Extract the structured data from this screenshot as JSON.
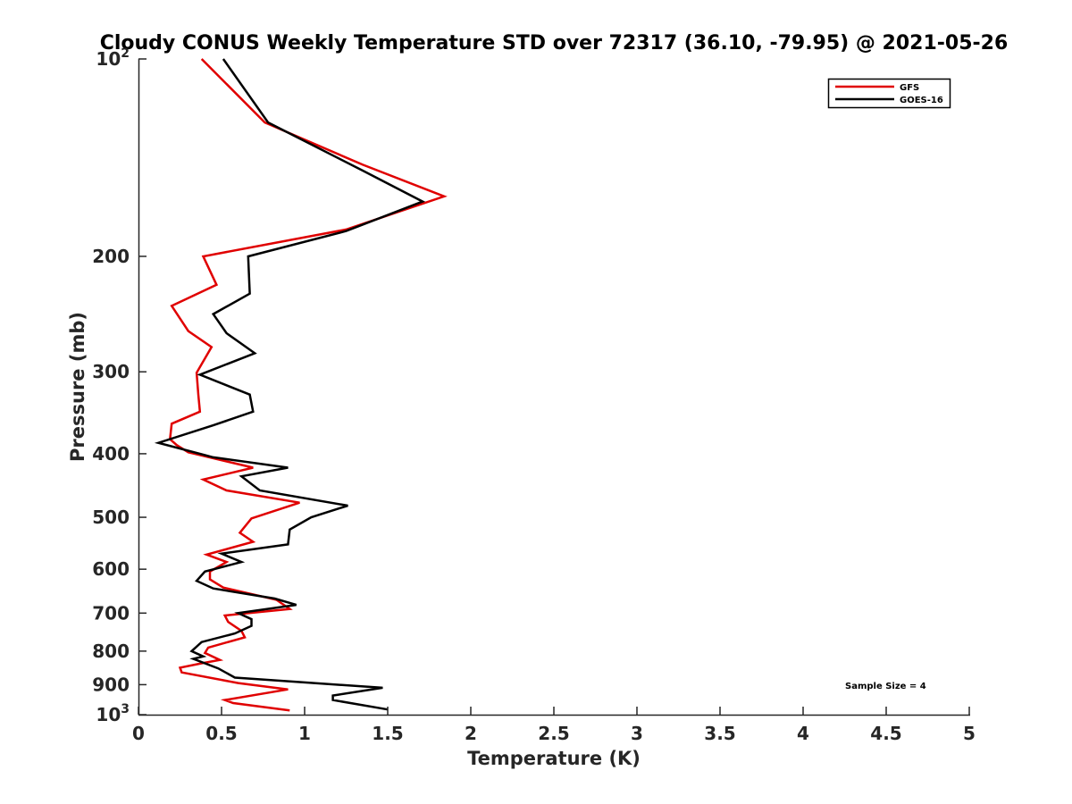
{
  "chart_data": {
    "type": "line",
    "title": "Cloudy CONUS Weekly Temperature STD over 72317 (36.10, -79.95) @ 2021-05-26",
    "xlabel": "Temperature (K)",
    "ylabel": "Pressure (mb)",
    "xlim": [
      0,
      5
    ],
    "ylim": [
      100,
      1000
    ],
    "y_scale": "log",
    "y_direction": "reverse",
    "x_ticks": [
      "0",
      "0.5",
      "1",
      "1.5",
      "2",
      "2.5",
      "3",
      "3.5",
      "4",
      "4.5",
      "5"
    ],
    "y_ticks": [
      {
        "value": 100,
        "base": "10",
        "exp": "2"
      },
      {
        "value": 200,
        "label": "200"
      },
      {
        "value": 300,
        "label": "300"
      },
      {
        "value": 400,
        "label": "400"
      },
      {
        "value": 500,
        "label": "500"
      },
      {
        "value": 600,
        "label": "600"
      },
      {
        "value": 700,
        "label": "700"
      },
      {
        "value": 800,
        "label": "800"
      },
      {
        "value": 900,
        "label": "900"
      },
      {
        "value": 1000,
        "base": "10",
        "exp": "3"
      }
    ],
    "legend": {
      "position": "top-right"
    },
    "annotation": "Sample Size = 4",
    "series": [
      {
        "name": "GFS",
        "color": "#e00000",
        "points": [
          [
            0.38,
            100
          ],
          [
            0.76,
            125
          ],
          [
            1.35,
            145
          ],
          [
            1.84,
            162
          ],
          [
            1.25,
            182
          ],
          [
            0.39,
            200
          ],
          [
            0.47,
            221
          ],
          [
            0.2,
            238
          ],
          [
            0.3,
            260
          ],
          [
            0.44,
            275
          ],
          [
            0.35,
            301
          ],
          [
            0.36,
            325
          ],
          [
            0.37,
            345
          ],
          [
            0.2,
            360
          ],
          [
            0.19,
            380
          ],
          [
            0.23,
            388
          ],
          [
            0.3,
            398
          ],
          [
            0.69,
            420
          ],
          [
            0.39,
            438
          ],
          [
            0.53,
            455
          ],
          [
            0.97,
            475
          ],
          [
            0.68,
            502
          ],
          [
            0.61,
            528
          ],
          [
            0.69,
            545
          ],
          [
            0.41,
            570
          ],
          [
            0.53,
            585
          ],
          [
            0.43,
            605
          ],
          [
            0.43,
            622
          ],
          [
            0.51,
            640
          ],
          [
            0.83,
            668
          ],
          [
            0.91,
            690
          ],
          [
            0.52,
            706
          ],
          [
            0.54,
            722
          ],
          [
            0.62,
            745
          ],
          [
            0.64,
            762
          ],
          [
            0.42,
            790
          ],
          [
            0.4,
            805
          ],
          [
            0.49,
            825
          ],
          [
            0.38,
            835
          ],
          [
            0.25,
            848
          ],
          [
            0.26,
            862
          ],
          [
            0.6,
            895
          ],
          [
            0.9,
            915
          ],
          [
            0.52,
            950
          ],
          [
            0.57,
            960
          ],
          [
            0.91,
            985
          ]
        ]
      },
      {
        "name": "GOES-16",
        "color": "#000000",
        "points": [
          [
            0.51,
            100
          ],
          [
            0.78,
            125
          ],
          [
            1.35,
            148
          ],
          [
            1.71,
            165
          ],
          [
            1.25,
            183
          ],
          [
            0.66,
            200
          ],
          [
            0.67,
            228
          ],
          [
            0.45,
            245
          ],
          [
            0.53,
            262
          ],
          [
            0.7,
            281
          ],
          [
            0.37,
            303
          ],
          [
            0.67,
            325
          ],
          [
            0.69,
            345
          ],
          [
            0.45,
            362
          ],
          [
            0.12,
            385
          ],
          [
            0.45,
            405
          ],
          [
            0.9,
            420
          ],
          [
            0.62,
            433
          ],
          [
            0.73,
            455
          ],
          [
            1.26,
            480
          ],
          [
            1.04,
            500
          ],
          [
            0.91,
            522
          ],
          [
            0.9,
            550
          ],
          [
            0.5,
            568
          ],
          [
            0.62,
            585
          ],
          [
            0.4,
            605
          ],
          [
            0.35,
            625
          ],
          [
            0.45,
            642
          ],
          [
            0.82,
            665
          ],
          [
            0.95,
            680
          ],
          [
            0.6,
            700
          ],
          [
            0.68,
            715
          ],
          [
            0.68,
            732
          ],
          [
            0.58,
            752
          ],
          [
            0.38,
            775
          ],
          [
            0.32,
            800
          ],
          [
            0.39,
            815
          ],
          [
            0.33,
            822
          ],
          [
            0.48,
            850
          ],
          [
            0.58,
            878
          ],
          [
            1.47,
            910
          ],
          [
            1.17,
            935
          ],
          [
            1.17,
            950
          ],
          [
            1.5,
            982
          ]
        ]
      }
    ]
  }
}
